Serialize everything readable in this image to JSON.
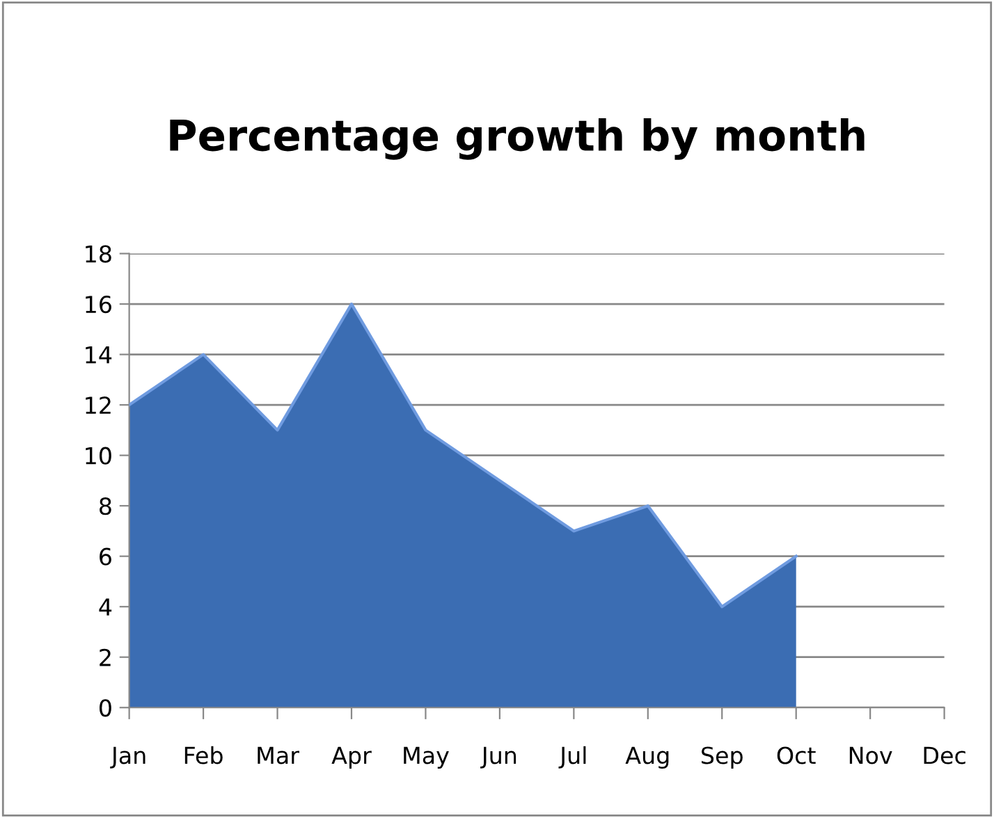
{
  "chart_data": {
    "type": "area",
    "title": "Percentage growth by month",
    "categories": [
      "Jan",
      "Feb",
      "Mar",
      "Apr",
      "May",
      "Jun",
      "Jul",
      "Aug",
      "Sep",
      "Oct",
      "Nov",
      "Dec"
    ],
    "values": [
      12,
      14,
      11,
      16,
      11,
      9,
      7,
      8,
      4,
      6,
      null,
      null
    ],
    "color": "#3b6db3",
    "ylim": [
      0,
      18
    ],
    "yticks": [
      0,
      2,
      4,
      6,
      8,
      10,
      12,
      14,
      16,
      18
    ],
    "grid": "y",
    "legend": false
  }
}
